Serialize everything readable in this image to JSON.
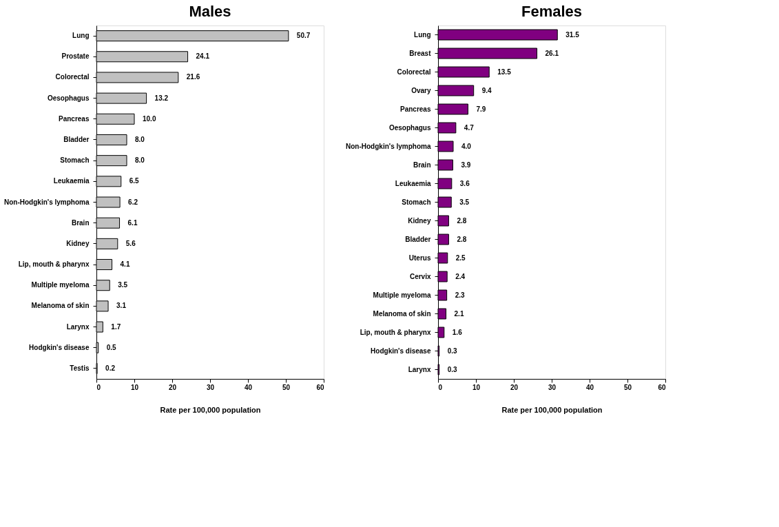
{
  "chart_data": [
    {
      "type": "bar",
      "orientation": "horizontal",
      "title": "Males",
      "xlabel": "Rate per 100,000 population",
      "categories": [
        "Lung",
        "Prostate",
        "Colorectal",
        "Oesophagus",
        "Pancreas",
        "Bladder",
        "Stomach",
        "Leukaemia",
        "Non-Hodgkin's lymphoma",
        "Brain",
        "Kidney",
        "Lip, mouth & pharynx",
        "Multiple myeloma",
        "Melanoma of skin",
        "Larynx",
        "Hodgkin's disease",
        "Testis"
      ],
      "values": [
        50.7,
        24.1,
        21.6,
        13.2,
        10.0,
        8.0,
        8.0,
        6.5,
        6.2,
        6.1,
        5.6,
        4.1,
        3.5,
        3.1,
        1.7,
        0.5,
        0.2
      ],
      "value_labels": [
        "50.7",
        "24.1",
        "21.6",
        "13.2",
        "10.0",
        "8.0",
        "8.0",
        "6.5",
        "6.2",
        "6.1",
        "5.6",
        "4.1",
        "3.5",
        "3.1",
        "1.7",
        "0.5",
        "0.2"
      ],
      "color": "#c0c0c0",
      "xlim": [
        0,
        60
      ],
      "xticks": [
        0,
        10,
        20,
        30,
        40,
        50,
        60
      ],
      "grid": false
    },
    {
      "type": "bar",
      "orientation": "horizontal",
      "title": "Females",
      "xlabel": "Rate per 100,000 population",
      "categories": [
        "Lung",
        "Breast",
        "Colorectal",
        "Ovary",
        "Pancreas",
        "Oesophagus",
        "Non-Hodgkin's lymphoma",
        "Brain",
        "Leukaemia",
        "Stomach",
        "Kidney",
        "Bladder",
        "Uterus",
        "Cervix",
        "Multiple myeloma",
        "Melanoma of skin",
        "Lip, mouth & pharynx",
        "Hodgkin's disease",
        "Larynx"
      ],
      "values": [
        31.5,
        26.1,
        13.5,
        9.4,
        7.9,
        4.7,
        4.0,
        3.9,
        3.6,
        3.5,
        2.8,
        2.8,
        2.5,
        2.4,
        2.3,
        2.1,
        1.6,
        0.3,
        0.3
      ],
      "value_labels": [
        "31.5",
        "26.1",
        "13.5",
        "9.4",
        "7.9",
        "4.7",
        "4.0",
        "3.9",
        "3.6",
        "3.5",
        "2.8",
        "2.8",
        "2.5",
        "2.4",
        "2.3",
        "2.1",
        "1.6",
        "0.3",
        "0.3"
      ],
      "color": "#800080",
      "xlim": [
        0,
        60
      ],
      "xticks": [
        0,
        10,
        20,
        30,
        40,
        50,
        60
      ],
      "grid": false
    }
  ]
}
